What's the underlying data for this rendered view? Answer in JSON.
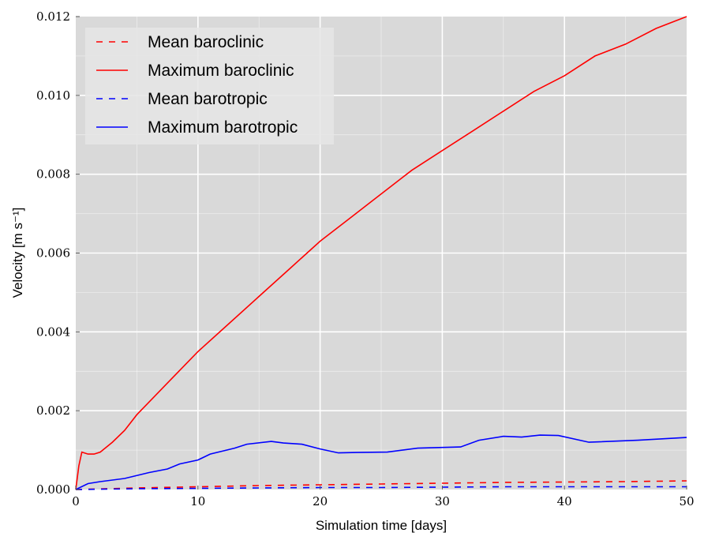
{
  "chart_data": {
    "type": "line",
    "title": "",
    "xlabel": "Simulation time [days]",
    "ylabel": "Velocity [m s⁻¹]",
    "xlim": [
      0,
      50
    ],
    "ylim": [
      0,
      0.012
    ],
    "xticks": [
      "0",
      "10",
      "20",
      "30",
      "40",
      "50"
    ],
    "xtick_values": [
      0,
      10,
      20,
      30,
      40,
      50
    ],
    "yticks": [
      "0.000",
      "0.002",
      "0.004",
      "0.006",
      "0.008",
      "0.010",
      "0.012"
    ],
    "ytick_values": [
      0,
      0.002,
      0.004,
      0.006,
      0.008,
      0.01,
      0.012
    ],
    "grid": true,
    "legend_position": "top-left",
    "series": [
      {
        "name": "Mean baroclinic",
        "color": "#ff0000",
        "style": "dashed",
        "x": [
          0,
          5,
          10,
          15,
          20,
          25,
          30,
          35,
          40,
          45,
          50
        ],
        "y": [
          0,
          4e-05,
          7e-05,
          0.0001,
          0.00012,
          0.00014,
          0.00016,
          0.00018,
          0.00019,
          0.0002,
          0.00022
        ]
      },
      {
        "name": "Maximum baroclinic",
        "color": "#ff0000",
        "style": "solid",
        "x": [
          0,
          0.25,
          0.5,
          1,
          1.5,
          2,
          3,
          4,
          5,
          7.5,
          10,
          12.5,
          15,
          17.5,
          20,
          22.5,
          25,
          27.5,
          30,
          32.5,
          35,
          37.5,
          40,
          42.5,
          45,
          47.5,
          50
        ],
        "y": [
          0,
          0.0006,
          0.00095,
          0.0009,
          0.0009,
          0.00095,
          0.0012,
          0.0015,
          0.0019,
          0.0027,
          0.0035,
          0.0042,
          0.0049,
          0.0056,
          0.0063,
          0.0069,
          0.0075,
          0.0081,
          0.0086,
          0.0091,
          0.0096,
          0.0101,
          0.0105,
          0.011,
          0.0113,
          0.0117,
          0.012
        ]
      },
      {
        "name": "Mean barotropic",
        "color": "#0000ff",
        "style": "dashed",
        "x": [
          0,
          5,
          10,
          15,
          20,
          25,
          30,
          35,
          40,
          45,
          50
        ],
        "y": [
          0,
          2e-05,
          3e-05,
          4e-05,
          5e-05,
          5e-05,
          6e-05,
          7e-05,
          7e-05,
          7e-05,
          7e-05
        ]
      },
      {
        "name": "Maximum barotropic",
        "color": "#0000ff",
        "style": "solid",
        "x": [
          0,
          1,
          2,
          4,
          6,
          7.5,
          8.5,
          10,
          11,
          13,
          14,
          16,
          17,
          18.5,
          20,
          21.5,
          23,
          25.5,
          28,
          31.5,
          33,
          35,
          36.5,
          38,
          39.5,
          42,
          46,
          50
        ],
        "y": [
          0,
          0.00015,
          0.0002,
          0.00028,
          0.00043,
          0.00052,
          0.00065,
          0.00075,
          0.0009,
          0.00105,
          0.00115,
          0.00122,
          0.00118,
          0.00115,
          0.00103,
          0.00093,
          0.00094,
          0.00095,
          0.00105,
          0.00108,
          0.00125,
          0.00135,
          0.00133,
          0.00138,
          0.00137,
          0.0012,
          0.00125,
          0.00132
        ]
      }
    ]
  }
}
